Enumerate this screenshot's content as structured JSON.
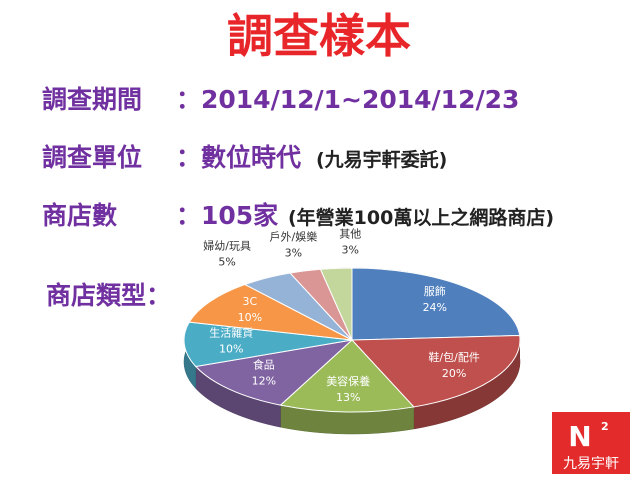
{
  "slide": {
    "title": "調查樣本",
    "rows": [
      {
        "label": "調查期間",
        "value": "：2014/12/1~2014/12/23"
      },
      {
        "label": "調查單位",
        "value": "：數位時代",
        "note": "(九易宇軒委託)"
      },
      {
        "label": "商店數",
        "value": "：105家",
        "note": "(年營業100萬以上之網路商店)"
      }
    ],
    "chart_label": "商店類型：",
    "logo": {
      "mark": "N",
      "sup": "2",
      "name": "九易宇軒"
    }
  },
  "chart_data": {
    "type": "pie",
    "categories": [
      "服飾",
      "鞋/包/配件",
      "美容保養",
      "食品",
      "生活雜貨",
      "3C",
      "婦幼/玩具",
      "戶外/娛樂",
      "其他"
    ],
    "values": [
      24,
      20,
      13,
      12,
      10,
      10,
      5,
      3,
      3
    ],
    "value_labels": [
      "24%",
      "20%",
      "13%",
      "12%",
      "10%",
      "10%",
      "5%",
      "3%",
      "3%"
    ],
    "colors": [
      "#4f7fbd",
      "#c0504d",
      "#9bbb59",
      "#8064a2",
      "#4bacc6",
      "#f79646",
      "#95b3d7",
      "#d99694",
      "#c3d69b"
    ]
  }
}
